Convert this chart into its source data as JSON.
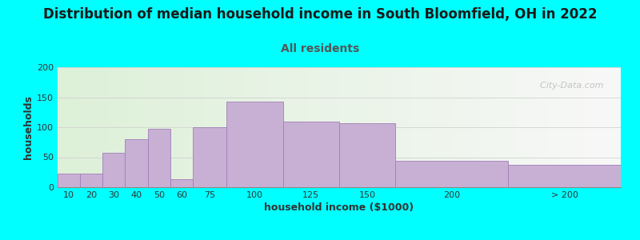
{
  "title": "Distribution of median household income in South Bloomfield, OH in 2022",
  "subtitle": "All residents",
  "xlabel": "household income ($1000)",
  "ylabel": "households",
  "bg_outer": "#00FFFF",
  "bg_inner_left": "#ddf0d8",
  "bg_inner_right": "#f8f8f8",
  "bar_color": "#c8afd4",
  "bar_edge_color": "#a080b8",
  "categories": [
    "10",
    "20",
    "30",
    "40",
    "50",
    "60",
    "75",
    "100",
    "125",
    "150",
    "200",
    "> 200"
  ],
  "values": [
    23,
    23,
    57,
    80,
    97,
    14,
    100,
    143,
    110,
    107,
    44,
    37
  ],
  "x_left_edges": [
    0,
    10,
    20,
    30,
    40,
    50,
    60,
    75,
    100,
    125,
    150,
    200
  ],
  "x_right_edges": [
    10,
    20,
    30,
    40,
    50,
    60,
    75,
    100,
    125,
    150,
    200,
    250
  ],
  "ylim": [
    0,
    200
  ],
  "yticks": [
    0,
    50,
    100,
    150,
    200
  ],
  "xtick_labels": [
    "10",
    "20",
    "30",
    "40",
    "50",
    "60",
    "75",
    "100",
    "125",
    "150",
    "200",
    "> 200"
  ],
  "title_fontsize": 12,
  "subtitle_fontsize": 10,
  "axis_label_fontsize": 9,
  "tick_fontsize": 8,
  "watermark": "  City-Data.com"
}
